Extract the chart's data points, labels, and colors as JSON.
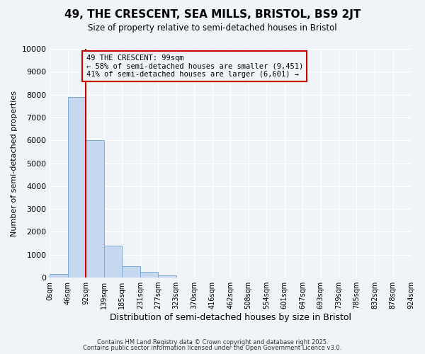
{
  "title": "49, THE CRESCENT, SEA MILLS, BRISTOL, BS9 2JT",
  "subtitle": "Size of property relative to semi-detached houses in Bristol",
  "xlabel": "Distribution of semi-detached houses by size in Bristol",
  "ylabel": "Number of semi-detached properties",
  "bar_values": [
    150,
    7900,
    6000,
    1400,
    500,
    250,
    100,
    0,
    0,
    0,
    0,
    0,
    0,
    0,
    0,
    0,
    0,
    0,
    0,
    0
  ],
  "bin_edges": [
    0,
    46,
    92,
    139,
    185,
    231,
    277,
    323,
    370,
    416,
    462,
    508,
    554,
    601,
    647,
    693,
    739,
    785,
    832,
    878,
    924
  ],
  "xlabels": [
    "0sqm",
    "46sqm",
    "92sqm",
    "139sqm",
    "185sqm",
    "231sqm",
    "277sqm",
    "323sqm",
    "370sqm",
    "416sqm",
    "462sqm",
    "508sqm",
    "554sqm",
    "601sqm",
    "647sqm",
    "693sqm",
    "739sqm",
    "785sqm",
    "832sqm",
    "878sqm",
    "924sqm"
  ],
  "bar_color": "#c5d8f0",
  "bar_edge_color": "#7aadd4",
  "vline_x": 92,
  "vline_color": "#cc0000",
  "annotation_title": "49 THE CRESCENT: 99sqm",
  "annotation_line2": "← 58% of semi-detached houses are smaller (9,451)",
  "annotation_line3": "41% of semi-detached houses are larger (6,601) →",
  "annotation_box_color": "#cc0000",
  "ylim": [
    0,
    10000
  ],
  "yticks": [
    0,
    1000,
    2000,
    3000,
    4000,
    5000,
    6000,
    7000,
    8000,
    9000,
    10000
  ],
  "background_color": "#f0f4f8",
  "plot_bg_color": "#f0f4f8",
  "grid_color": "#ffffff",
  "footer_line1": "Contains HM Land Registry data © Crown copyright and database right 2025.",
  "footer_line2": "Contains public sector information licensed under the Open Government Licence v3.0."
}
